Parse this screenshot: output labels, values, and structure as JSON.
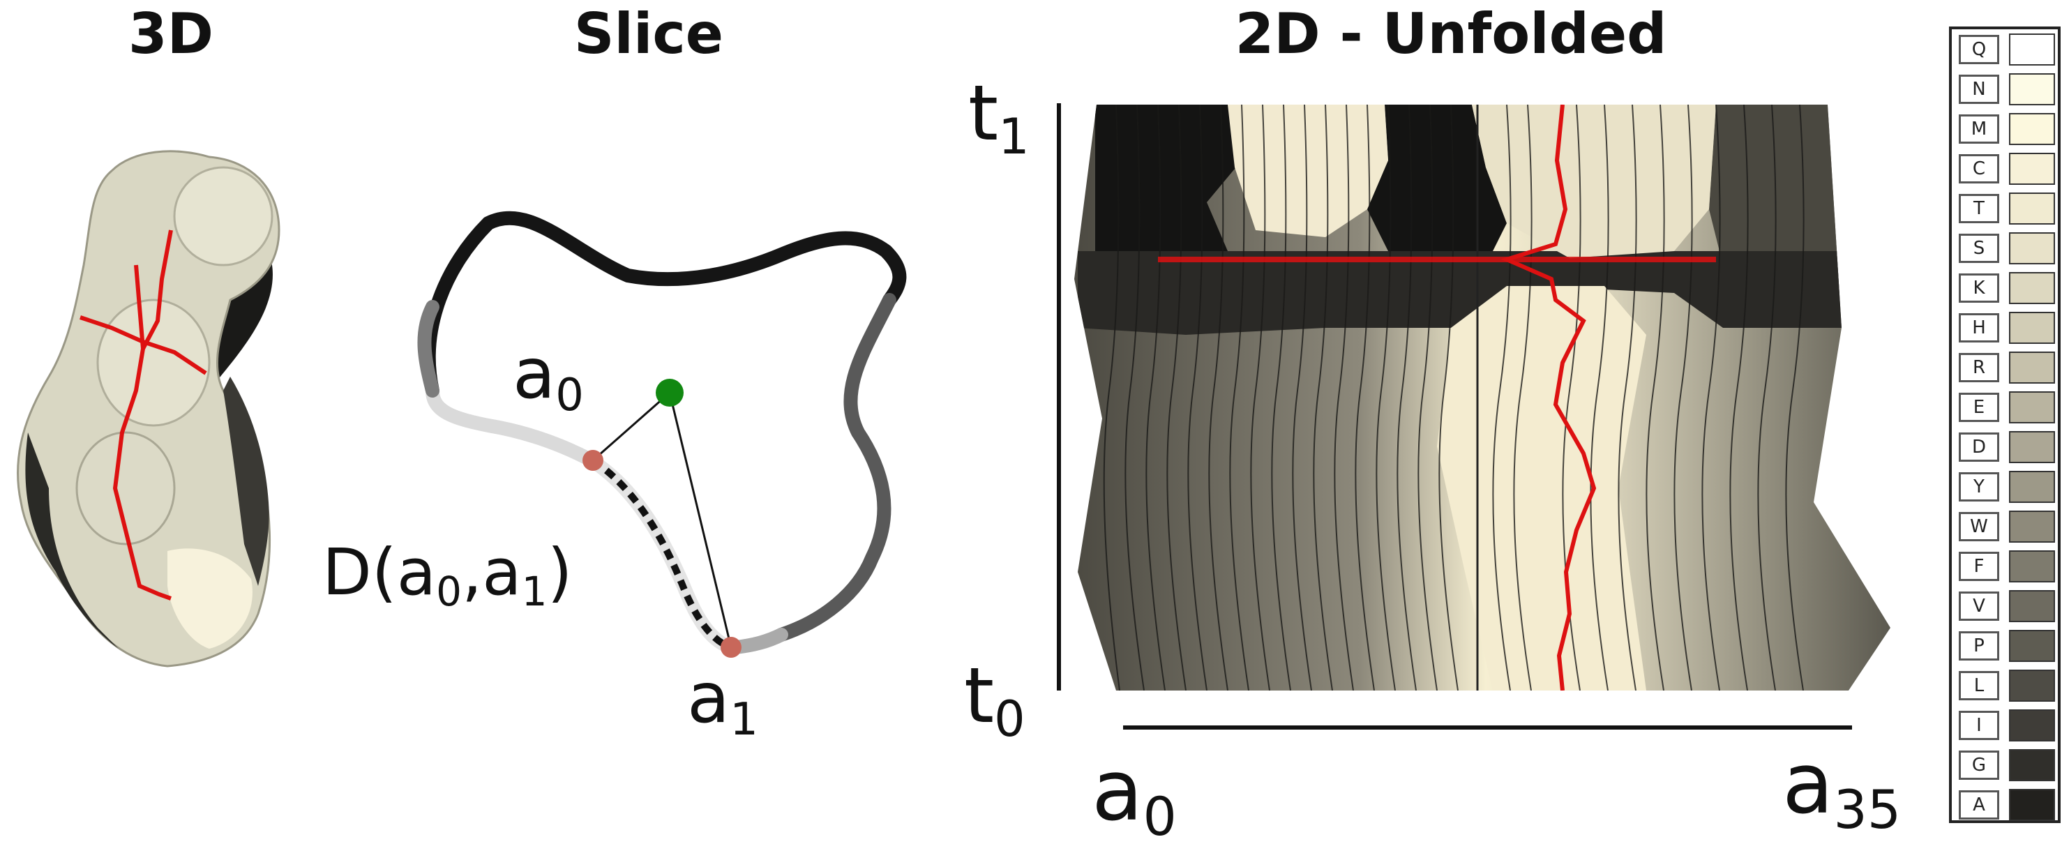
{
  "titles": {
    "panel_3d": "3D",
    "panel_slice": "Slice",
    "panel_unfolded": "2D - Unfolded"
  },
  "slice": {
    "label_a0": {
      "base": "a",
      "sub": "0"
    },
    "label_a1": {
      "base": "a",
      "sub": "1"
    },
    "distance_label": {
      "prefix": "D(a",
      "sub0": "0",
      "mid": ",a",
      "sub1": "1",
      "suffix": ")"
    }
  },
  "unfolded": {
    "t_top": {
      "base": "t",
      "sub": "1"
    },
    "t_bottom": {
      "base": "t",
      "sub": "0"
    },
    "a_left": {
      "base": "a",
      "sub": "0"
    },
    "a_right": {
      "base": "a",
      "sub": "35"
    }
  },
  "legend": {
    "items": [
      {
        "letter": "Q",
        "color": "#ffffff"
      },
      {
        "letter": "N",
        "color": "#fdfbe6"
      },
      {
        "letter": "M",
        "color": "#fcf8de"
      },
      {
        "letter": "C",
        "color": "#f7f1d8"
      },
      {
        "letter": "T",
        "color": "#f1ebd1"
      },
      {
        "letter": "S",
        "color": "#e8e2c9"
      },
      {
        "letter": "K",
        "color": "#ddd8c0"
      },
      {
        "letter": "H",
        "color": "#d2cdb6"
      },
      {
        "letter": "R",
        "color": "#c6c1ab"
      },
      {
        "letter": "E",
        "color": "#b9b4a0"
      },
      {
        "letter": "D",
        "color": "#aca795"
      },
      {
        "letter": "Y",
        "color": "#9d9988"
      },
      {
        "letter": "W",
        "color": "#8e8a7b"
      },
      {
        "letter": "F",
        "color": "#7e7b6e"
      },
      {
        "letter": "V",
        "color": "#6e6b60"
      },
      {
        "letter": "P",
        "color": "#5e5c52"
      },
      {
        "letter": "L",
        "color": "#4e4c45"
      },
      {
        "letter": "I",
        "color": "#3f3d38"
      },
      {
        "letter": "G",
        "color": "#302f2b"
      },
      {
        "letter": "A",
        "color": "#22211e"
      }
    ]
  },
  "colors": {
    "highlight_path": "#dd1111",
    "center_point": "#118811",
    "endpoint": "#c8675a",
    "surface_light": "#e3e1cf",
    "surface_dark": "#1a1a18"
  }
}
